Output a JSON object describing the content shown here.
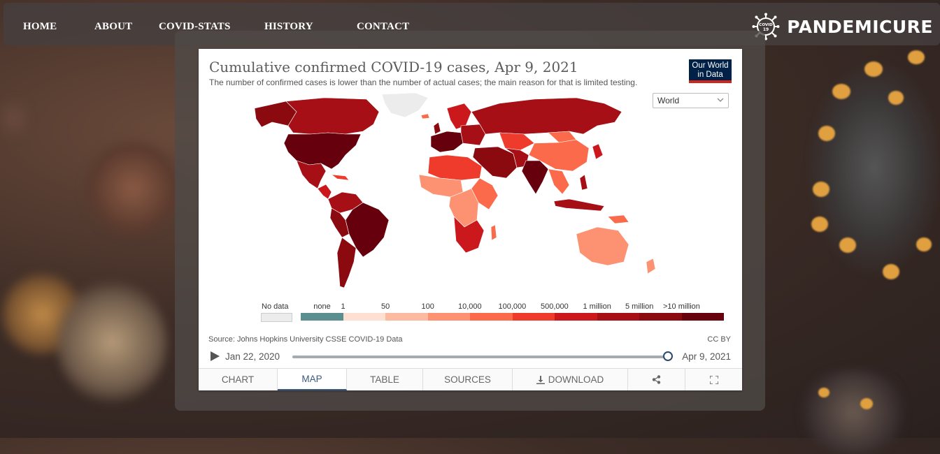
{
  "nav": {
    "items": [
      {
        "label": "HOME"
      },
      {
        "label": "ABOUT"
      },
      {
        "label": "COVID-STATS"
      },
      {
        "label": "HISTORY"
      },
      {
        "label": "CONTACT"
      }
    ],
    "brand": "PANDEMICURE",
    "brand_logo_text": "COVID 19"
  },
  "chart": {
    "title": "Cumulative confirmed COVID-19 cases, Apr 9, 2021",
    "subtitle": "The number of confirmed cases is lower than the number of actual cases; the main reason for that is limited testing.",
    "logo_line1": "Our World",
    "logo_line2": "in Data",
    "region": "World",
    "source": "Source: Johns Hopkins University CSSE COVID-19 Data",
    "license": "CC BY",
    "date_start": "Jan 22, 2020",
    "date_end": "Apr 9, 2021",
    "timeline_position": 1.0,
    "legend": {
      "no_data_label": "No data",
      "no_data_color": "#ececec",
      "bins": [
        {
          "label": "none",
          "color": "#5b8f8f"
        },
        {
          "label": "1",
          "color": "#fde0d2"
        },
        {
          "label": "50",
          "color": "#fcbba1"
        },
        {
          "label": "100",
          "color": "#fc9272"
        },
        {
          "label": "10,000",
          "color": "#fb6a4a"
        },
        {
          "label": "100,000",
          "color": "#ef3b2c"
        },
        {
          "label": "500,000",
          "color": "#cb181d"
        },
        {
          "label": "1 million",
          "color": "#a50f15"
        },
        {
          "label": "5 million",
          "color": "#8b0a10"
        },
        {
          "label": ">10 million",
          "color": "#67000d"
        }
      ]
    }
  },
  "tabs": [
    {
      "label": "CHART",
      "active": false
    },
    {
      "label": "MAP",
      "active": true
    },
    {
      "label": "TABLE",
      "active": false
    },
    {
      "label": "SOURCES",
      "active": false
    },
    {
      "label": "DOWNLOAD",
      "active": false,
      "icon": "download-icon"
    },
    {
      "label": "",
      "active": false,
      "icon": "share-icon"
    },
    {
      "label": "",
      "active": false,
      "icon": "fullscreen-icon"
    }
  ]
}
